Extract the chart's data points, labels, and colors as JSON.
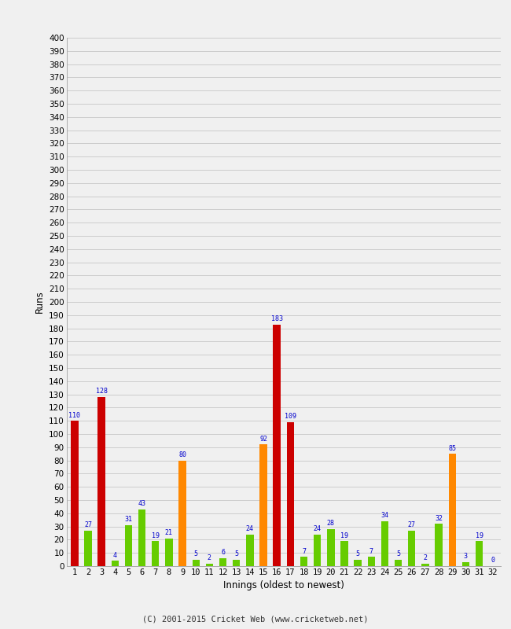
{
  "xlabel": "Innings (oldest to newest)",
  "ylabel": "Runs",
  "ylim": [
    0,
    400
  ],
  "yticks": [
    0,
    10,
    20,
    30,
    40,
    50,
    60,
    70,
    80,
    90,
    100,
    110,
    120,
    130,
    140,
    150,
    160,
    170,
    180,
    190,
    200,
    210,
    220,
    230,
    240,
    250,
    260,
    270,
    280,
    290,
    300,
    310,
    320,
    330,
    340,
    350,
    360,
    370,
    380,
    390,
    400
  ],
  "innings": [
    1,
    2,
    3,
    4,
    5,
    6,
    7,
    8,
    9,
    10,
    11,
    12,
    13,
    14,
    15,
    16,
    17,
    18,
    19,
    20,
    21,
    22,
    23,
    24,
    25,
    26,
    27,
    28,
    29,
    30,
    31,
    32
  ],
  "values": [
    110,
    27,
    128,
    4,
    31,
    43,
    19,
    21,
    80,
    5,
    2,
    6,
    5,
    24,
    92,
    183,
    109,
    7,
    24,
    28,
    19,
    5,
    7,
    34,
    5,
    27,
    2,
    32,
    85,
    3,
    19,
    0
  ],
  "colors": [
    "#cc0000",
    "#66cc00",
    "#cc0000",
    "#66cc00",
    "#66cc00",
    "#66cc00",
    "#66cc00",
    "#66cc00",
    "#ff8800",
    "#66cc00",
    "#66cc00",
    "#66cc00",
    "#66cc00",
    "#66cc00",
    "#ff8800",
    "#cc0000",
    "#cc0000",
    "#66cc00",
    "#66cc00",
    "#66cc00",
    "#66cc00",
    "#66cc00",
    "#66cc00",
    "#66cc00",
    "#66cc00",
    "#66cc00",
    "#66cc00",
    "#66cc00",
    "#ff8800",
    "#66cc00",
    "#66cc00",
    "#66cc00"
  ],
  "label_color": "#0000cc",
  "background_color": "#f0f0f0",
  "grid_color": "#cccccc",
  "footer": "(C) 2001-2015 Cricket Web (www.cricketweb.net)"
}
